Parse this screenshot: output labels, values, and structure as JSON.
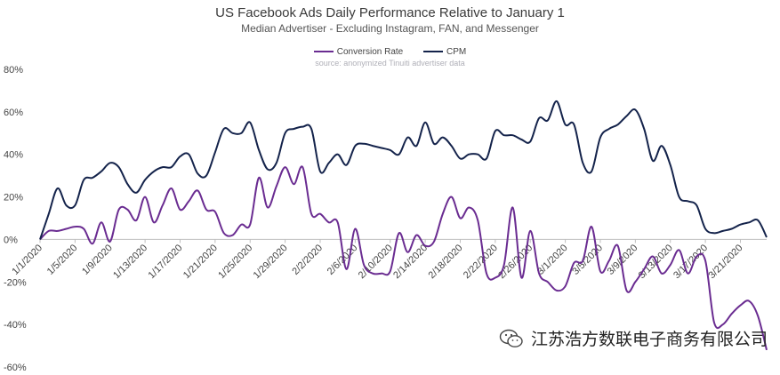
{
  "chart_data": {
    "type": "line",
    "title": "US Facebook Ads Daily Performance Relative to January 1",
    "subtitle": "Median Advertiser - Excluding Instagram, FAN, and Messenger",
    "source": "source: anonymized Tinuiti advertiser data",
    "xlabel": "",
    "ylabel": "",
    "ylim": [
      -60,
      80
    ],
    "yticks": [
      -60,
      -40,
      -20,
      0,
      20,
      40,
      60,
      80
    ],
    "ytick_labels": [
      "-60%",
      "-40%",
      "-20%",
      "0%",
      "20%",
      "40%",
      "60%",
      "80%"
    ],
    "x_dates": [
      "2020-01-01",
      "2020-03-24"
    ],
    "xticks": [
      {
        "date": "2020-01-01",
        "label": "1/1/2020"
      },
      {
        "date": "2020-01-05",
        "label": "1/5/2020"
      },
      {
        "date": "2020-01-09",
        "label": "1/9/2020"
      },
      {
        "date": "2020-01-13",
        "label": "1/13/2020"
      },
      {
        "date": "2020-01-17",
        "label": "1/17/2020"
      },
      {
        "date": "2020-01-21",
        "label": "1/21/2020"
      },
      {
        "date": "2020-01-25",
        "label": "1/25/2020"
      },
      {
        "date": "2020-01-29",
        "label": "1/29/2020"
      },
      {
        "date": "2020-02-02",
        "label": "2/2/2020"
      },
      {
        "date": "2020-02-06",
        "label": "2/6/2020"
      },
      {
        "date": "2020-02-10",
        "label": "2/10/2020"
      },
      {
        "date": "2020-02-14",
        "label": "2/14/2020"
      },
      {
        "date": "2020-02-18",
        "label": "2/18/2020"
      },
      {
        "date": "2020-02-22",
        "label": "2/22/2020"
      },
      {
        "date": "2020-02-26",
        "label": "2/26/2020"
      },
      {
        "date": "2020-03-01",
        "label": "3/1/2020"
      },
      {
        "date": "2020-03-05",
        "label": "3/5/2020"
      },
      {
        "date": "2020-03-09",
        "label": "3/9/2020"
      },
      {
        "date": "2020-03-13",
        "label": "3/13/2020"
      },
      {
        "date": "2020-03-17",
        "label": "3/17/2020"
      },
      {
        "date": "2020-03-21",
        "label": "3/21/2020"
      }
    ],
    "legend_position": "top-center",
    "grid": false,
    "series": [
      {
        "name": "Conversion Rate",
        "color": "#6a2c91",
        "points": [
          [
            "2020-01-01",
            0
          ],
          [
            "2020-01-02",
            4
          ],
          [
            "2020-01-03",
            4
          ],
          [
            "2020-01-04",
            5
          ],
          [
            "2020-01-05",
            6
          ],
          [
            "2020-01-06",
            5
          ],
          [
            "2020-01-07",
            -2
          ],
          [
            "2020-01-08",
            8
          ],
          [
            "2020-01-09",
            -1
          ],
          [
            "2020-01-10",
            14
          ],
          [
            "2020-01-11",
            14
          ],
          [
            "2020-01-12",
            9
          ],
          [
            "2020-01-13",
            20
          ],
          [
            "2020-01-14",
            8
          ],
          [
            "2020-01-15",
            16
          ],
          [
            "2020-01-16",
            24
          ],
          [
            "2020-01-17",
            14
          ],
          [
            "2020-01-18",
            18
          ],
          [
            "2020-01-19",
            23
          ],
          [
            "2020-01-20",
            14
          ],
          [
            "2020-01-21",
            13
          ],
          [
            "2020-01-22",
            3
          ],
          [
            "2020-01-23",
            2
          ],
          [
            "2020-01-24",
            7
          ],
          [
            "2020-01-25",
            7
          ],
          [
            "2020-01-26",
            29
          ],
          [
            "2020-01-27",
            15
          ],
          [
            "2020-01-28",
            25
          ],
          [
            "2020-01-29",
            34
          ],
          [
            "2020-01-30",
            26
          ],
          [
            "2020-01-31",
            34
          ],
          [
            "2020-02-01",
            12
          ],
          [
            "2020-02-02",
            12
          ],
          [
            "2020-02-03",
            8
          ],
          [
            "2020-02-04",
            8
          ],
          [
            "2020-02-05",
            -14
          ],
          [
            "2020-02-06",
            5
          ],
          [
            "2020-02-07",
            -12
          ],
          [
            "2020-02-08",
            -16
          ],
          [
            "2020-02-09",
            -16
          ],
          [
            "2020-02-10",
            -15
          ],
          [
            "2020-02-11",
            3
          ],
          [
            "2020-02-12",
            -6
          ],
          [
            "2020-02-13",
            2
          ],
          [
            "2020-02-14",
            -3
          ],
          [
            "2020-02-15",
            -1
          ],
          [
            "2020-02-16",
            12
          ],
          [
            "2020-02-17",
            20
          ],
          [
            "2020-02-18",
            10
          ],
          [
            "2020-02-19",
            15
          ],
          [
            "2020-02-20",
            9
          ],
          [
            "2020-02-21",
            -16
          ],
          [
            "2020-02-22",
            -18
          ],
          [
            "2020-02-23",
            -12
          ],
          [
            "2020-02-24",
            15
          ],
          [
            "2020-02-25",
            -18
          ],
          [
            "2020-02-26",
            4
          ],
          [
            "2020-02-27",
            -16
          ],
          [
            "2020-02-28",
            -20
          ],
          [
            "2020-02-29",
            -24
          ],
          [
            "2020-03-01",
            -22
          ],
          [
            "2020-03-02",
            -11
          ],
          [
            "2020-03-03",
            -10
          ],
          [
            "2020-03-04",
            6
          ],
          [
            "2020-03-05",
            -15
          ],
          [
            "2020-03-06",
            -10
          ],
          [
            "2020-03-07",
            -3
          ],
          [
            "2020-03-08",
            -24
          ],
          [
            "2020-03-09",
            -20
          ],
          [
            "2020-03-10",
            -14
          ],
          [
            "2020-03-11",
            -8
          ],
          [
            "2020-03-12",
            -16
          ],
          [
            "2020-03-13",
            -12
          ],
          [
            "2020-03-14",
            -5
          ],
          [
            "2020-03-15",
            -16
          ],
          [
            "2020-03-16",
            -8
          ],
          [
            "2020-03-17",
            -10
          ],
          [
            "2020-03-18",
            -39
          ],
          [
            "2020-03-19",
            -40
          ],
          [
            "2020-03-20",
            -35
          ],
          [
            "2020-03-21",
            -31
          ],
          [
            "2020-03-22",
            -29
          ],
          [
            "2020-03-23",
            -36
          ],
          [
            "2020-03-24",
            -52
          ]
        ]
      },
      {
        "name": "CPM",
        "color": "#14234b",
        "points": [
          [
            "2020-01-01",
            0
          ],
          [
            "2020-01-02",
            12
          ],
          [
            "2020-01-03",
            24
          ],
          [
            "2020-01-04",
            16
          ],
          [
            "2020-01-05",
            16
          ],
          [
            "2020-01-06",
            28
          ],
          [
            "2020-01-07",
            29
          ],
          [
            "2020-01-08",
            32
          ],
          [
            "2020-01-09",
            36
          ],
          [
            "2020-01-10",
            34
          ],
          [
            "2020-01-11",
            26
          ],
          [
            "2020-01-12",
            22
          ],
          [
            "2020-01-13",
            28
          ],
          [
            "2020-01-14",
            32
          ],
          [
            "2020-01-15",
            34
          ],
          [
            "2020-01-16",
            34
          ],
          [
            "2020-01-17",
            39
          ],
          [
            "2020-01-18",
            40
          ],
          [
            "2020-01-19",
            31
          ],
          [
            "2020-01-20",
            30
          ],
          [
            "2020-01-21",
            41
          ],
          [
            "2020-01-22",
            52
          ],
          [
            "2020-01-23",
            50
          ],
          [
            "2020-01-24",
            50
          ],
          [
            "2020-01-25",
            55
          ],
          [
            "2020-01-26",
            42
          ],
          [
            "2020-01-27",
            33
          ],
          [
            "2020-01-28",
            36
          ],
          [
            "2020-01-29",
            50
          ],
          [
            "2020-01-30",
            52
          ],
          [
            "2020-01-31",
            53
          ],
          [
            "2020-02-01",
            52
          ],
          [
            "2020-02-02",
            32
          ],
          [
            "2020-02-03",
            36
          ],
          [
            "2020-02-04",
            40
          ],
          [
            "2020-02-05",
            35
          ],
          [
            "2020-02-06",
            44
          ],
          [
            "2020-02-07",
            45
          ],
          [
            "2020-02-08",
            44
          ],
          [
            "2020-02-09",
            43
          ],
          [
            "2020-02-10",
            42
          ],
          [
            "2020-02-11",
            40
          ],
          [
            "2020-02-12",
            48
          ],
          [
            "2020-02-13",
            44
          ],
          [
            "2020-02-14",
            55
          ],
          [
            "2020-02-15",
            45
          ],
          [
            "2020-02-16",
            48
          ],
          [
            "2020-02-17",
            44
          ],
          [
            "2020-02-18",
            38
          ],
          [
            "2020-02-19",
            40
          ],
          [
            "2020-02-20",
            40
          ],
          [
            "2020-02-21",
            38
          ],
          [
            "2020-02-22",
            51
          ],
          [
            "2020-02-23",
            49
          ],
          [
            "2020-02-24",
            49
          ],
          [
            "2020-02-25",
            47
          ],
          [
            "2020-02-26",
            46
          ],
          [
            "2020-02-27",
            57
          ],
          [
            "2020-02-28",
            56
          ],
          [
            "2020-02-29",
            65
          ],
          [
            "2020-03-01",
            54
          ],
          [
            "2020-03-02",
            54
          ],
          [
            "2020-03-03",
            36
          ],
          [
            "2020-03-04",
            32
          ],
          [
            "2020-03-05",
            48
          ],
          [
            "2020-03-06",
            52
          ],
          [
            "2020-03-07",
            54
          ],
          [
            "2020-03-08",
            58
          ],
          [
            "2020-03-09",
            61
          ],
          [
            "2020-03-10",
            52
          ],
          [
            "2020-03-11",
            37
          ],
          [
            "2020-03-12",
            44
          ],
          [
            "2020-03-13",
            35
          ],
          [
            "2020-03-14",
            20
          ],
          [
            "2020-03-15",
            18
          ],
          [
            "2020-03-16",
            16
          ],
          [
            "2020-03-17",
            5
          ],
          [
            "2020-03-18",
            3
          ],
          [
            "2020-03-19",
            4
          ],
          [
            "2020-03-20",
            5
          ],
          [
            "2020-03-21",
            7
          ],
          [
            "2020-03-22",
            8
          ],
          [
            "2020-03-23",
            9
          ],
          [
            "2020-03-24",
            1
          ]
        ]
      }
    ]
  },
  "watermark": {
    "text": "江苏浩方数联电子商务有限公司",
    "icon": "wechat-icon"
  }
}
